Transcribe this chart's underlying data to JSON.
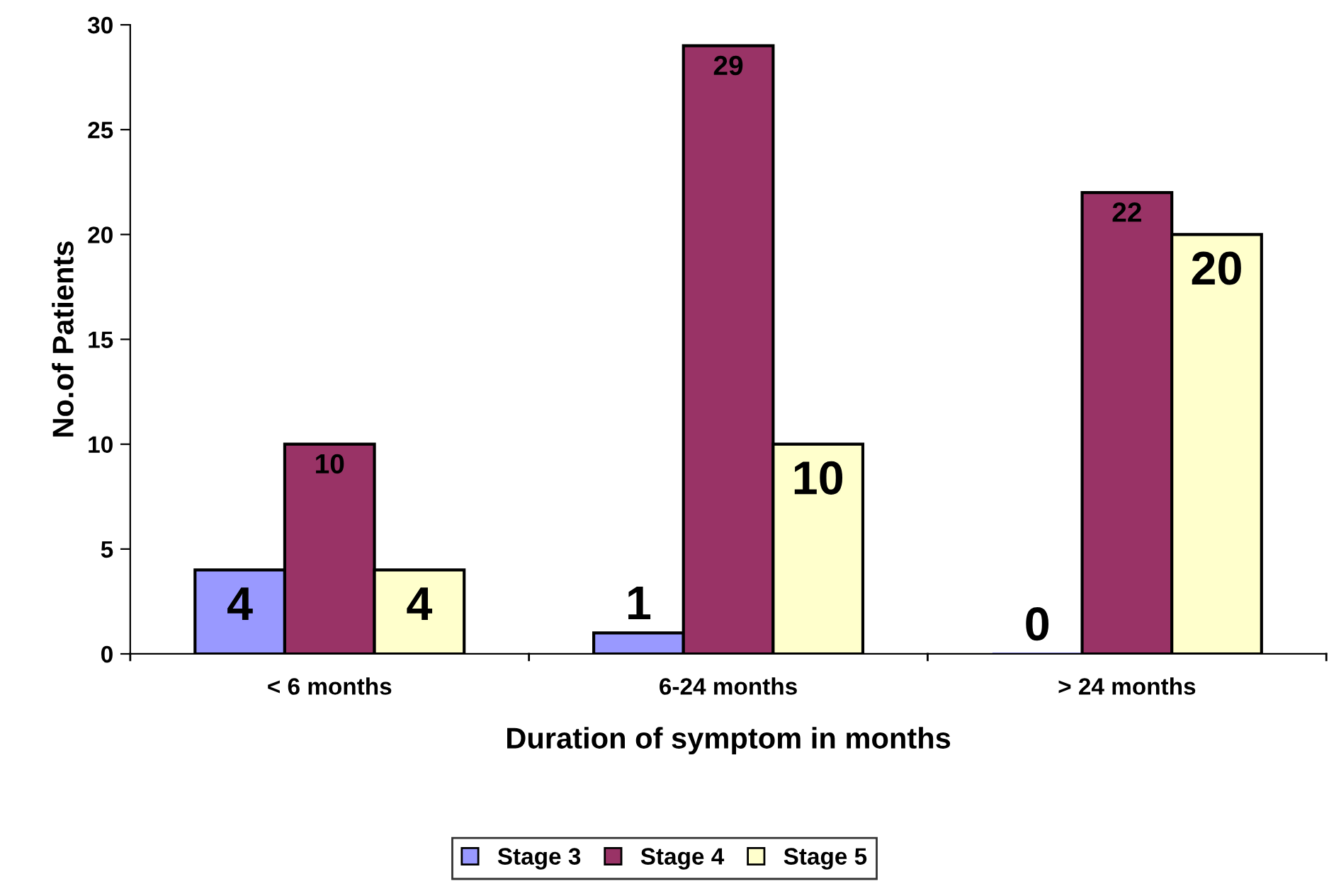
{
  "chart_data": {
    "type": "bar",
    "xlabel": "Duration of symptom in months",
    "ylabel": "No.of Patients",
    "categories": [
      "< 6 months",
      "6-24 months",
      "> 24 months"
    ],
    "series": [
      {
        "name": "Stage 3",
        "color": "#9999ff",
        "values": [
          4,
          1,
          0
        ]
      },
      {
        "name": "Stage 4",
        "color": "#993366",
        "values": [
          10,
          29,
          22
        ]
      },
      {
        "name": "Stage 5",
        "color": "#ffffcc",
        "values": [
          4,
          10,
          20
        ]
      }
    ],
    "ylim": [
      0,
      30
    ],
    "yticks": [
      0,
      5,
      10,
      15,
      20,
      25,
      30
    ],
    "data_labels": true,
    "grid": false,
    "legend": "bottom"
  }
}
